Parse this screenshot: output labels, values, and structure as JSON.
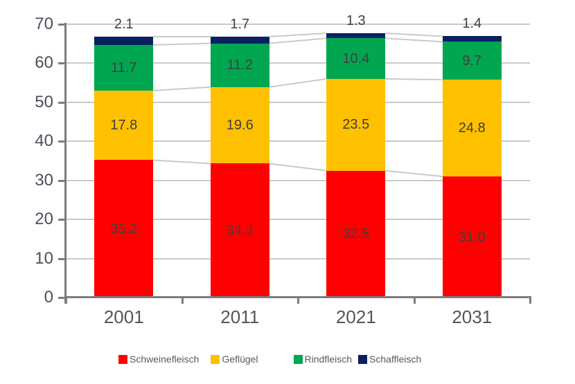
{
  "chart_data": {
    "type": "bar",
    "stacked": true,
    "title": "",
    "categories": [
      "2001",
      "2011",
      "2021",
      "2031"
    ],
    "series": [
      {
        "name": "Schweinefleisch",
        "color": "#FF0000",
        "values": [
          35.2,
          34.3,
          32.5,
          31.0
        ],
        "labels": [
          "35.2",
          "34.3",
          "32.5",
          "31.0"
        ]
      },
      {
        "name": "Geflügel",
        "color": "#FFC000",
        "values": [
          17.8,
          19.6,
          23.5,
          24.8
        ],
        "labels": [
          "17.8",
          "19.6",
          "23.5",
          "24.8"
        ]
      },
      {
        "name": "Rindfleisch",
        "color": "#00A650",
        "values": [
          11.7,
          11.2,
          10.4,
          9.7
        ],
        "labels": [
          "11.7",
          "11.2",
          "10.4",
          "9.7"
        ]
      },
      {
        "name": "Schaffleisch",
        "color": "#0A2060",
        "values": [
          2.1,
          1.7,
          1.3,
          1.4
        ],
        "labels": [
          "2.1",
          "1.7",
          "1.3",
          "1.4"
        ]
      }
    ],
    "top_labels": [
      "2.1",
      "1.7",
      "1.3",
      "1.4"
    ],
    "y_axis": {
      "min": 0,
      "max": 70,
      "step": 10,
      "ticks": [
        "0",
        "10",
        "20",
        "30",
        "40",
        "50",
        "60",
        "70"
      ]
    },
    "grid": true,
    "series_lines": true,
    "legend_position": "bottom",
    "colors": {
      "gridline": "#C9C9C9",
      "connector_line": "#C9C9C9",
      "axis_line": "#7C7C7C",
      "value_label_text": "#3F3F3F",
      "axis_label_text": "#4C4F5B",
      "legend_text": "#595959"
    }
  }
}
